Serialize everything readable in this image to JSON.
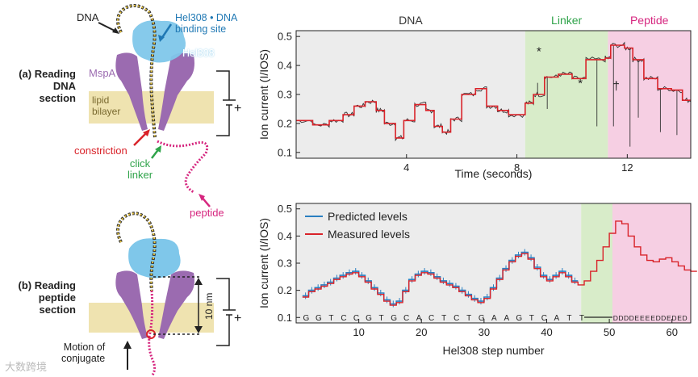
{
  "colors": {
    "dna_region": "#ececec",
    "linker_region": "#d8ecc9",
    "peptide_region": "#f6cfe3",
    "measured": "#d9232a",
    "predicted": "#2a7fc1",
    "raw": "#333333",
    "pore": "#9b6bb0",
    "bilayer": "#efe3b0",
    "helicase": "#7fc7ea",
    "helicase_label": "#1f78b4",
    "constriction": "#d9232a",
    "click": "#2fa34a",
    "peptide": "#d6267f"
  },
  "diagram_a": {
    "title_lines": [
      "(a) Reading",
      "DNA",
      "section"
    ],
    "dna": "DNA",
    "helicase_site_lines": [
      "Hel308 • DNA",
      "binding site"
    ],
    "helicase": "Hel308",
    "pore": "MspA",
    "bilayer_lines": [
      "lipid",
      "bilayer"
    ],
    "constriction": "constriction",
    "click_linker_lines": [
      "click",
      "linker"
    ],
    "peptide": "peptide",
    "plus": "+"
  },
  "diagram_b": {
    "title_lines": [
      "(b) Reading",
      "peptide",
      "section"
    ],
    "distance": "10 nm",
    "plus": "+",
    "motion_lines": [
      "Motion of",
      "conjugate"
    ]
  },
  "watermark": "大数跨境",
  "chart_top": {
    "type": "line",
    "regions": [
      {
        "label": "DNA",
        "x": [
          0,
          8.3
        ]
      },
      {
        "label": "Linker",
        "x": [
          8.3,
          11.3
        ]
      },
      {
        "label": "Peptide",
        "x": [
          11.3,
          14.3
        ]
      }
    ],
    "xlabel": "Time (seconds)",
    "ylabel": "Ion current (I/IOS)",
    "xlim": [
      0,
      14.3
    ],
    "ylim": [
      0.08,
      0.52
    ],
    "xticks": [
      4,
      8,
      12
    ],
    "yticks": [
      0.1,
      0.2,
      0.3,
      0.4,
      0.5
    ],
    "annotations": [
      {
        "text": "*",
        "x": 8.8,
        "y": 0.435
      },
      {
        "text": "*",
        "x": 10.3,
        "y": 0.325
      },
      {
        "text": "†",
        "x": 11.6,
        "y": 0.315
      }
    ],
    "steps": [
      [
        0,
        0.21
      ],
      [
        0.6,
        0.195
      ],
      [
        1.2,
        0.21
      ],
      [
        1.7,
        0.23
      ],
      [
        2.1,
        0.26
      ],
      [
        2.5,
        0.275
      ],
      [
        2.9,
        0.245
      ],
      [
        3.2,
        0.2
      ],
      [
        3.6,
        0.15
      ],
      [
        3.9,
        0.21
      ],
      [
        4.3,
        0.265
      ],
      [
        4.7,
        0.245
      ],
      [
        5.0,
        0.19
      ],
      [
        5.3,
        0.17
      ],
      [
        5.6,
        0.215
      ],
      [
        6.0,
        0.3
      ],
      [
        6.5,
        0.32
      ],
      [
        6.9,
        0.26
      ],
      [
        7.3,
        0.245
      ],
      [
        7.7,
        0.23
      ],
      [
        8.3,
        0.27
      ],
      [
        8.6,
        0.3
      ],
      [
        9.0,
        0.36
      ],
      [
        9.5,
        0.37
      ],
      [
        10.0,
        0.355
      ],
      [
        10.5,
        0.42
      ],
      [
        11.2,
        0.425
      ],
      [
        11.4,
        0.47
      ],
      [
        11.9,
        0.46
      ],
      [
        12.2,
        0.42
      ],
      [
        12.6,
        0.355
      ],
      [
        13.1,
        0.32
      ],
      [
        13.6,
        0.315
      ],
      [
        14.0,
        0.28
      ]
    ],
    "spikes": [
      {
        "x": 8.75,
        "y": 0.34
      },
      {
        "x": 9.1,
        "y": 0.25
      },
      {
        "x": 10.9,
        "y": 0.19
      },
      {
        "x": 11.5,
        "y": 0.19
      },
      {
        "x": 12.1,
        "y": 0.12
      },
      {
        "x": 12.4,
        "y": 0.22
      },
      {
        "x": 13.2,
        "y": 0.17
      },
      {
        "x": 13.8,
        "y": 0.16
      }
    ]
  },
  "chart_bottom": {
    "type": "line",
    "regions": [
      {
        "label": "",
        "x": [
          0,
          45.5
        ]
      },
      {
        "label": "",
        "x": [
          45.5,
          50.5
        ]
      },
      {
        "label": "",
        "x": [
          50.5,
          63
        ]
      }
    ],
    "xlabel": "Hel308 step number",
    "ylabel": "Ion current (I/IOS)",
    "xlim": [
      0,
      63
    ],
    "ylim": [
      0.08,
      0.52
    ],
    "xticks": [
      10,
      20,
      30,
      40,
      50,
      60
    ],
    "yticks": [
      0.1,
      0.2,
      0.3,
      0.4,
      0.5
    ],
    "legend_position": "top-left",
    "sequence_dna": "GGTCCGTGCACTCTGAAGTCATT",
    "sequence_peptide": "DDDDEEEEDDEDED",
    "series": [
      {
        "name": "Predicted levels",
        "values": [
          0.18,
          0.2,
          0.21,
          0.22,
          0.23,
          0.245,
          0.255,
          0.265,
          0.27,
          0.255,
          0.235,
          0.21,
          0.19,
          0.165,
          0.15,
          0.16,
          0.2,
          0.24,
          0.26,
          0.27,
          0.265,
          0.25,
          0.235,
          0.225,
          0.215,
          0.2,
          0.185,
          0.17,
          0.16,
          0.175,
          0.21,
          0.245,
          0.28,
          0.31,
          0.33,
          0.34,
          0.32,
          0.285,
          0.255,
          0.24,
          0.255,
          0.27,
          0.255,
          0.235
        ]
      },
      {
        "name": "Measured levels",
        "values": [
          0.175,
          0.195,
          0.205,
          0.215,
          0.225,
          0.24,
          0.25,
          0.26,
          0.265,
          0.25,
          0.23,
          0.205,
          0.185,
          0.16,
          0.145,
          0.155,
          0.195,
          0.235,
          0.255,
          0.265,
          0.26,
          0.245,
          0.23,
          0.22,
          0.21,
          0.195,
          0.18,
          0.165,
          0.155,
          0.17,
          0.205,
          0.24,
          0.275,
          0.305,
          0.325,
          0.335,
          0.315,
          0.28,
          0.25,
          0.235,
          0.25,
          0.265,
          0.25,
          0.23,
          0.22,
          0.235,
          0.27,
          0.31,
          0.36,
          0.41,
          0.455,
          0.445,
          0.4,
          0.36,
          0.33,
          0.31,
          0.305,
          0.315,
          0.32,
          0.305,
          0.29,
          0.275,
          0.27
        ]
      }
    ]
  }
}
